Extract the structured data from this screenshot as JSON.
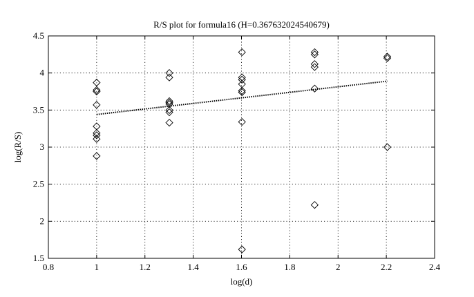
{
  "chart_data": {
    "type": "scatter",
    "title": "R/S plot for formula16 (H=0.367632024540679)",
    "xlabel": "log(d)",
    "ylabel": "log(R/S)",
    "xlim": [
      0.8,
      2.4
    ],
    "ylim": [
      1.5,
      4.5
    ],
    "xticks": [
      "0.8",
      "1",
      "1.2",
      "1.4",
      "1.6",
      "1.8",
      "2",
      "2.2",
      "2.4"
    ],
    "yticks": [
      "1.5",
      "2",
      "2.5",
      "3",
      "3.5",
      "4",
      "4.5"
    ],
    "grid": true,
    "legend": "none",
    "marker": "diamond",
    "color": "#000000",
    "points": [
      {
        "x": 1.0,
        "y": 3.87
      },
      {
        "x": 1.0,
        "y": 3.77
      },
      {
        "x": 1.0,
        "y": 3.75
      },
      {
        "x": 1.0,
        "y": 3.57
      },
      {
        "x": 1.0,
        "y": 3.28
      },
      {
        "x": 1.0,
        "y": 3.19
      },
      {
        "x": 1.0,
        "y": 3.16
      },
      {
        "x": 1.0,
        "y": 3.11
      },
      {
        "x": 1.0,
        "y": 2.88
      },
      {
        "x": 1.301,
        "y": 4.0
      },
      {
        "x": 1.301,
        "y": 3.94
      },
      {
        "x": 1.301,
        "y": 3.62
      },
      {
        "x": 1.301,
        "y": 3.6
      },
      {
        "x": 1.301,
        "y": 3.58
      },
      {
        "x": 1.301,
        "y": 3.5
      },
      {
        "x": 1.301,
        "y": 3.47
      },
      {
        "x": 1.301,
        "y": 3.33
      },
      {
        "x": 1.602,
        "y": 4.28
      },
      {
        "x": 1.602,
        "y": 3.94
      },
      {
        "x": 1.602,
        "y": 3.91
      },
      {
        "x": 1.602,
        "y": 3.85
      },
      {
        "x": 1.602,
        "y": 3.76
      },
      {
        "x": 1.602,
        "y": 3.74
      },
      {
        "x": 1.602,
        "y": 3.34
      },
      {
        "x": 1.602,
        "y": 1.62
      },
      {
        "x": 1.903,
        "y": 4.28
      },
      {
        "x": 1.903,
        "y": 4.25
      },
      {
        "x": 1.903,
        "y": 4.12
      },
      {
        "x": 1.903,
        "y": 4.08
      },
      {
        "x": 1.903,
        "y": 3.79
      },
      {
        "x": 1.903,
        "y": 2.22
      },
      {
        "x": 2.204,
        "y": 4.22
      },
      {
        "x": 2.204,
        "y": 4.2
      },
      {
        "x": 2.204,
        "y": 3.0
      }
    ],
    "fit_line": {
      "x": [
        1.0,
        2.204
      ],
      "y": [
        3.44,
        3.89
      ]
    }
  }
}
